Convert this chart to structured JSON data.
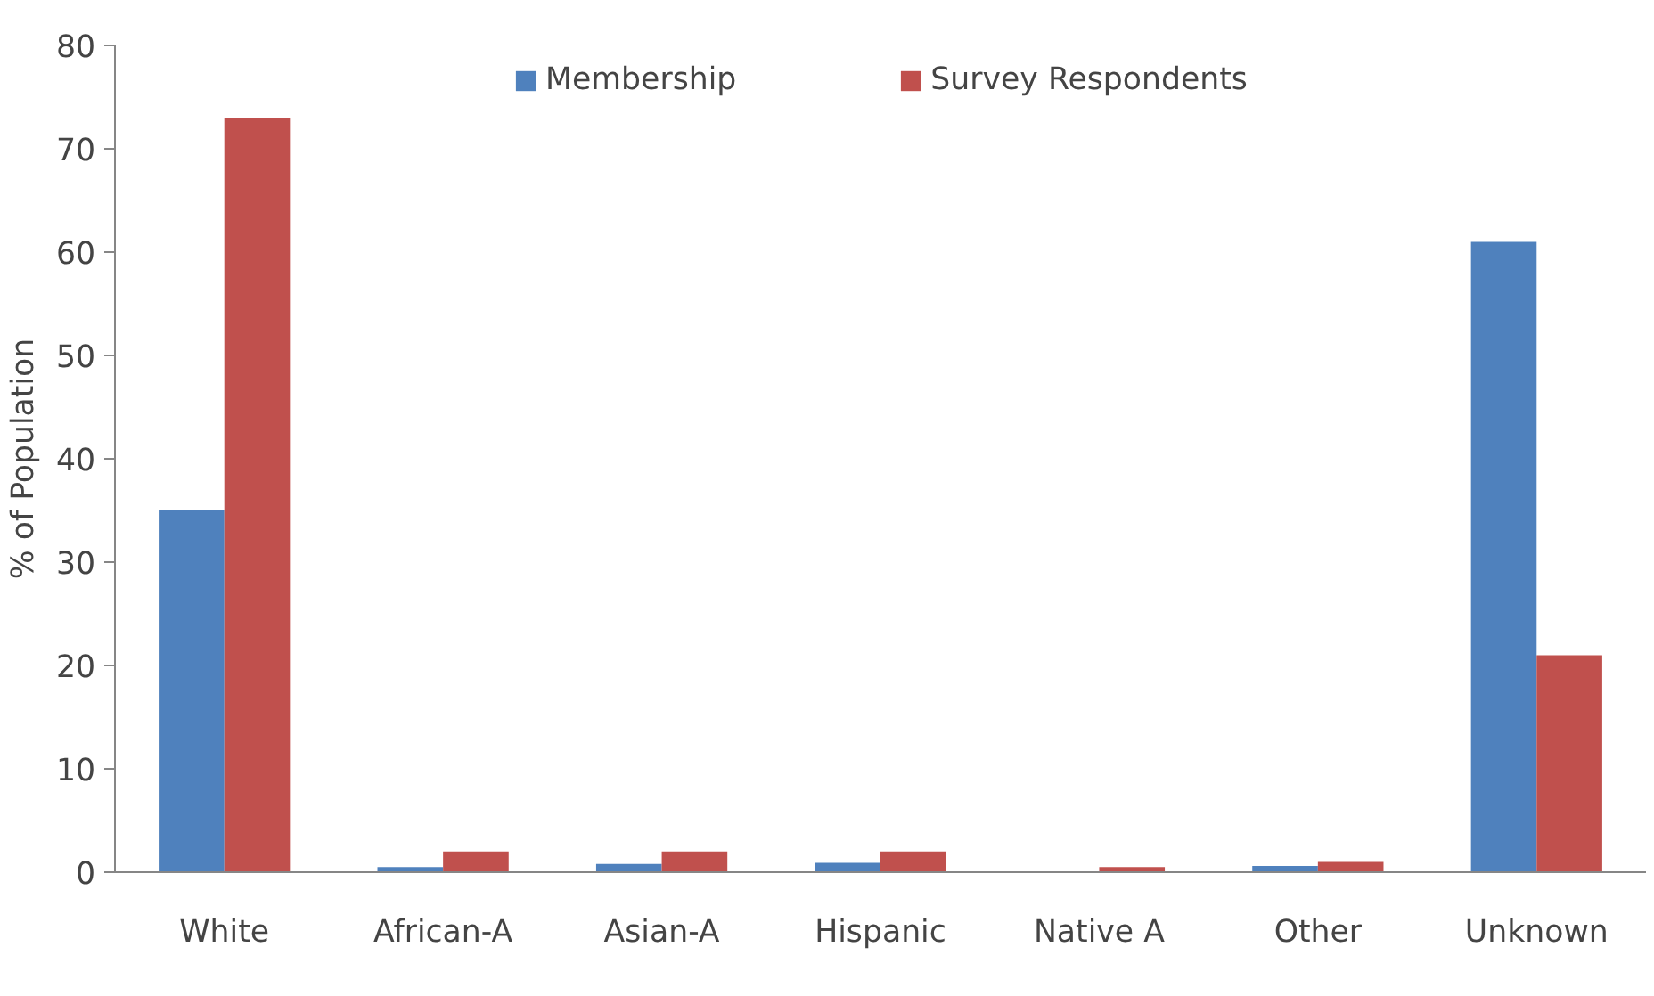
{
  "chart_data": {
    "type": "bar",
    "ylabel": "% of Population",
    "categories": [
      "White",
      "African-A",
      "Asian-A",
      "Hispanic",
      "Native A",
      "Other",
      "Unknown"
    ],
    "series": [
      {
        "name": "Membership",
        "color": "#4f81bd",
        "values": [
          35,
          0.5,
          0.8,
          0.9,
          null,
          0.6,
          61
        ]
      },
      {
        "name": "Survey Respondents",
        "color": "#c0504d",
        "values": [
          73,
          2,
          2,
          2,
          0.5,
          1,
          21
        ]
      }
    ],
    "ylim": [
      0,
      80
    ],
    "yticks": [
      0,
      10,
      20,
      30,
      40,
      50,
      60,
      70,
      80
    ],
    "grid": false,
    "legend": "top"
  }
}
